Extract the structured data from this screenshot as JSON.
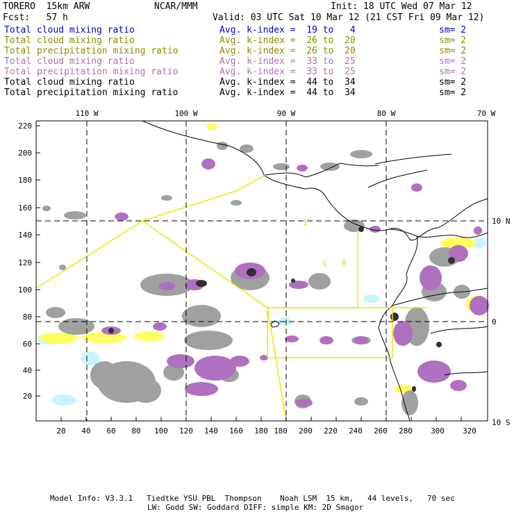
{
  "header": {
    "model": "TORERO  15km ARW",
    "org": "NCAR/MMM",
    "init": "Init: 18 UTC Wed 07 Mar 12",
    "fcst": "Fcst:   57 h",
    "valid": "Valid: 03 UTC Sat 10 Mar 12 (21 CST Fri 09 Mar 12)"
  },
  "legend": [
    {
      "name": "Total cloud mixing ratio",
      "avg": "Avg. k-index =  19 to   4",
      "sm": "sm= 2",
      "color": "#0000cc"
    },
    {
      "name": "Total cloud mixing ratio",
      "avg": "Avg. k-index =  26 to  20",
      "sm": "sm= 2",
      "color": "#8a8a00"
    },
    {
      "name": "Total precipitation mixing ratio",
      "avg": "Avg. k-index =  26 to  20",
      "sm": "sm= 2",
      "color": "#8a8a00"
    },
    {
      "name": "Total cloud mixing ratio",
      "avg": "Avg. k-index =  33 to  25",
      "sm": "sm= 2",
      "color": "#b070b0"
    },
    {
      "name": "Total precipitation mixing ratio",
      "avg": "Avg. k-index =  33 to  25",
      "sm": "sm= 2",
      "color": "#b070b0"
    },
    {
      "name": "Total cloud mixing ratio",
      "avg": "Avg. k-index =  44 to  34",
      "sm": "sm= 2",
      "color": "#000000"
    },
    {
      "name": "Total precipitation mixing ratio",
      "avg": "Avg. k-index =  44 to  34",
      "sm": "sm= 2",
      "color": "#000000"
    }
  ],
  "map": {
    "lon_labels": [
      "110 W",
      "100 W",
      "90 W",
      "80 W",
      "70 W"
    ],
    "lat_labels": [
      "10 N",
      "0",
      "10 S"
    ],
    "x_ticks": [
      "20",
      "40",
      "60",
      "80",
      "100",
      "120",
      "140",
      "160",
      "180",
      "200",
      "220",
      "240",
      "260",
      "280",
      "300",
      "320"
    ],
    "y_ticks": [
      "20",
      "40",
      "60",
      "80",
      "100",
      "120",
      "140",
      "160",
      "180",
      "200",
      "220"
    ],
    "domain_labels": [
      "1",
      "C",
      "R"
    ],
    "colors": {
      "gray": "#a0a0a0",
      "dark": "#303030",
      "magenta": "#b070c0",
      "yellow": "#ffff60",
      "cyan": "#c8f4ff",
      "domain_box": "#e8e800"
    }
  },
  "footer": {
    "line1": "Model Info: V3.3.1   Tiedtke YSU PBL  Thompson    Noah LSM  15 km,   44 levels,   70 sec",
    "line2": "LW: Godd SW: Goddard DIFF: simple KM: 2D Smagor"
  }
}
